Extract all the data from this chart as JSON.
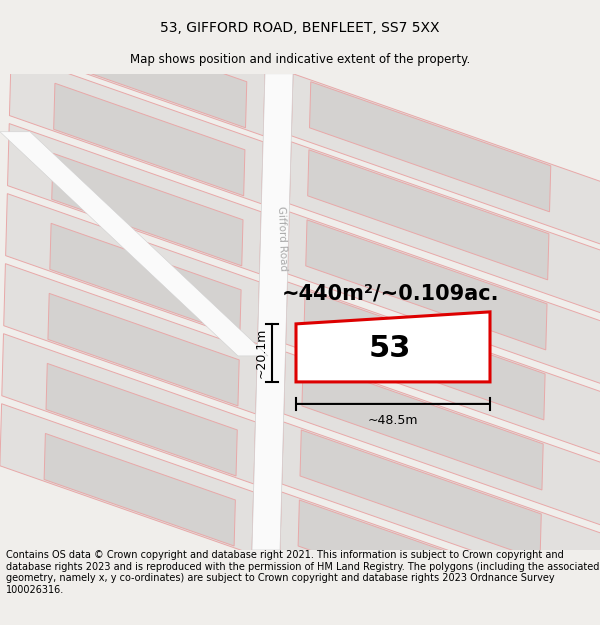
{
  "title": "53, GIFFORD ROAD, BENFLEET, SS7 5XX",
  "subtitle": "Map shows position and indicative extent of the property.",
  "footer": "Contains OS data © Crown copyright and database right 2021. This information is subject to Crown copyright and database rights 2023 and is reproduced with the permission of HM Land Registry. The polygons (including the associated geometry, namely x, y co-ordinates) are subject to Crown copyright and database rights 2023 Ordnance Survey 100026316.",
  "area_label": "~440m²/~0.109ac.",
  "plot_number": "53",
  "width_label": "~48.5m",
  "height_label": "~20.1m",
  "road_label": "Gifford Road",
  "bg_color": "#f0eeeb",
  "map_bg": "#f2f0ee",
  "block_fill": "#e2e0de",
  "block_inner_fill": "#d4d2d0",
  "road_fill": "#fafafa",
  "road_edge": "#d0d0d0",
  "pink": "#e8a8a8",
  "red": "#dd0000",
  "white": "#ffffff",
  "gray_text": "#aaaaaa",
  "title_fontsize": 10,
  "subtitle_fontsize": 8.5,
  "footer_fontsize": 7.0,
  "area_fontsize": 15,
  "plot_num_fontsize": 22,
  "measure_fontsize": 9
}
